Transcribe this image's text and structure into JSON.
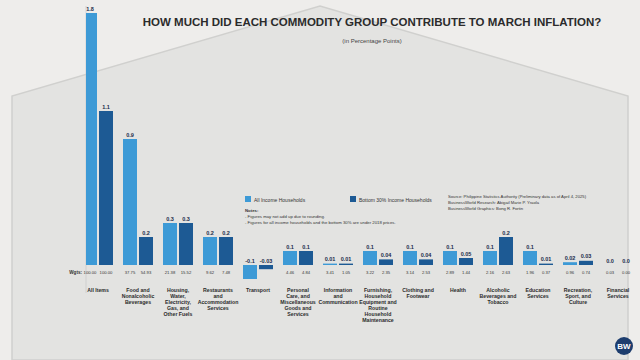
{
  "chart_data": {
    "type": "bar",
    "title": "HOW MUCH DID EACH COMMODITY GROUP CONTRIBUTE TO MARCH INFLATION?",
    "subtitle": "(in Percentage Points)",
    "categories": [
      "All Items",
      "Food and Nonalcoholic Beverages",
      "Housing, Water, Electricity, Gas, and Other Fuels",
      "Restaurants and Accommodation Services",
      "Transport",
      "Personal Care, and Miscellaneous Goods and Services",
      "Information and Communication",
      "Furnishing, Household Equipment and Routine Household Maintenance",
      "Clothing and Footwear",
      "Health",
      "Alcoholic Beverages and Tobacco",
      "Education Services",
      "Recreation, Sport, and Culture",
      "Financial Services"
    ],
    "series": [
      {
        "name": "All Income Households",
        "color": "#3d9ad6",
        "values": [
          1.8,
          0.9,
          0.3,
          0.2,
          -0.1,
          0.1,
          0.01,
          0.1,
          0.1,
          0.1,
          0.1,
          0.1,
          0.02,
          0.0
        ],
        "value_labels": [
          "1.8",
          "0.9",
          "0.3",
          "0.2",
          "-0.1",
          "0.1",
          "0.01",
          "0.1",
          "0.1",
          "0.1",
          "0.1",
          "0.1",
          "0.02",
          "0.0"
        ],
        "weights": [
          "100.00",
          "37.75",
          "21.38",
          "9.62",
          null,
          "4.46",
          "3.41",
          "3.22",
          "3.14",
          "2.89",
          "2.16",
          "1.96",
          "0.96",
          "0.03"
        ]
      },
      {
        "name": "Bottom 30% Income Households",
        "color": "#1d5a94",
        "values": [
          1.1,
          0.2,
          0.3,
          0.2,
          -0.03,
          0.1,
          0.01,
          0.04,
          0.04,
          0.05,
          0.2,
          0.01,
          0.03,
          0.0
        ],
        "value_labels": [
          "1.1",
          "0.2",
          "0.3",
          "0.2",
          "-0.03",
          "0.1",
          "0.01",
          "0.04",
          "0.04",
          "0.05",
          "0.2",
          "0.01",
          "0.03",
          "0.0"
        ],
        "weights": [
          "100.00",
          "54.93",
          "15.52",
          "7.48",
          null,
          "4.84",
          "1.05",
          "2.35",
          "2.53",
          "1.44",
          "2.63",
          "0.37",
          "0.74",
          "0.00"
        ]
      }
    ],
    "weights_label": "Wgts:",
    "ylim": [
      -0.2,
      1.85
    ],
    "yticks": [],
    "tick_labels": false,
    "data_labels": true,
    "notes": [
      "Notes:",
      "- Figures may not add up due to rounding.",
      "- Figures for all income households and the bottom 30% are under 2018 prices."
    ],
    "source": [
      "Source: Philippine Statistics Authority (Preliminary data as of April 4, 2025)",
      "BusinessWorld Research: Abigail Marie P. Yraola",
      "BusinessWorld Graphics: Bong R. Fortin"
    ],
    "logo": "BW"
  }
}
